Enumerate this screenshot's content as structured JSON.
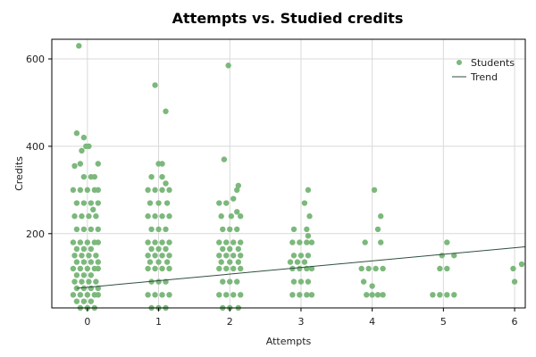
{
  "chart_data": {
    "type": "scatter",
    "title": "Attempts vs. Studied credits",
    "xlabel": "Attempts",
    "ylabel": "Credits",
    "xlim": [
      -0.5,
      6.15
    ],
    "ylim": [
      30,
      645
    ],
    "xticks": [
      0,
      1,
      2,
      3,
      4,
      5,
      6
    ],
    "yticks": [
      200,
      400,
      600
    ],
    "grid": true,
    "legend": "top-right",
    "colors": {
      "points": "#7cb87c",
      "trend": "#2e4f3e"
    },
    "series": [
      {
        "name": "Students",
        "kind": "scatter",
        "points": [
          [
            -0.12,
            630
          ],
          [
            -0.15,
            430
          ],
          [
            -0.05,
            420
          ],
          [
            -0.02,
            400
          ],
          [
            0.02,
            400
          ],
          [
            -0.08,
            390
          ],
          [
            -0.18,
            355
          ],
          [
            -0.1,
            360
          ],
          [
            0.15,
            360
          ],
          [
            -0.05,
            330
          ],
          [
            0.05,
            330
          ],
          [
            0.1,
            330
          ],
          [
            -0.2,
            300
          ],
          [
            -0.1,
            300
          ],
          [
            0.0,
            300
          ],
          [
            0.1,
            300
          ],
          [
            0.15,
            300
          ],
          [
            -0.15,
            270
          ],
          [
            -0.05,
            270
          ],
          [
            0.05,
            270
          ],
          [
            0.15,
            270
          ],
          [
            0.08,
            255
          ],
          [
            -0.18,
            240
          ],
          [
            -0.08,
            240
          ],
          [
            0.02,
            240
          ],
          [
            0.12,
            240
          ],
          [
            -0.15,
            210
          ],
          [
            -0.05,
            210
          ],
          [
            0.05,
            210
          ],
          [
            0.15,
            210
          ],
          [
            -0.2,
            180
          ],
          [
            -0.1,
            180
          ],
          [
            0.0,
            180
          ],
          [
            0.1,
            180
          ],
          [
            0.15,
            180
          ],
          [
            -0.15,
            165
          ],
          [
            -0.05,
            165
          ],
          [
            0.05,
            165
          ],
          [
            -0.18,
            150
          ],
          [
            -0.08,
            150
          ],
          [
            0.02,
            150
          ],
          [
            0.12,
            150
          ],
          [
            -0.15,
            135
          ],
          [
            -0.05,
            135
          ],
          [
            0.05,
            135
          ],
          [
            0.15,
            135
          ],
          [
            -0.2,
            120
          ],
          [
            -0.1,
            120
          ],
          [
            0.0,
            120
          ],
          [
            0.1,
            120
          ],
          [
            0.15,
            120
          ],
          [
            -0.15,
            105
          ],
          [
            -0.05,
            105
          ],
          [
            0.05,
            105
          ],
          [
            -0.18,
            90
          ],
          [
            -0.08,
            90
          ],
          [
            0.02,
            90
          ],
          [
            0.12,
            90
          ],
          [
            -0.15,
            75
          ],
          [
            -0.05,
            75
          ],
          [
            0.05,
            75
          ],
          [
            0.15,
            75
          ],
          [
            -0.2,
            60
          ],
          [
            -0.1,
            60
          ],
          [
            0.0,
            60
          ],
          [
            0.1,
            60
          ],
          [
            0.15,
            60
          ],
          [
            -0.15,
            45
          ],
          [
            -0.05,
            45
          ],
          [
            0.05,
            45
          ],
          [
            -0.1,
            30
          ],
          [
            0.0,
            30
          ],
          [
            0.1,
            30
          ],
          [
            0.95,
            540
          ],
          [
            1.1,
            480
          ],
          [
            1.0,
            360
          ],
          [
            1.05,
            360
          ],
          [
            0.9,
            330
          ],
          [
            1.05,
            330
          ],
          [
            1.1,
            315
          ],
          [
            0.85,
            300
          ],
          [
            0.95,
            300
          ],
          [
            1.05,
            300
          ],
          [
            1.15,
            300
          ],
          [
            0.88,
            270
          ],
          [
            1.0,
            270
          ],
          [
            1.12,
            270
          ],
          [
            0.85,
            240
          ],
          [
            0.95,
            240
          ],
          [
            1.05,
            240
          ],
          [
            1.15,
            240
          ],
          [
            0.9,
            210
          ],
          [
            1.0,
            210
          ],
          [
            1.1,
            210
          ],
          [
            0.85,
            180
          ],
          [
            0.95,
            180
          ],
          [
            1.05,
            180
          ],
          [
            1.15,
            180
          ],
          [
            0.9,
            165
          ],
          [
            1.0,
            165
          ],
          [
            1.1,
            165
          ],
          [
            0.85,
            150
          ],
          [
            0.95,
            150
          ],
          [
            1.05,
            150
          ],
          [
            1.15,
            150
          ],
          [
            0.88,
            135
          ],
          [
            1.0,
            135
          ],
          [
            1.12,
            135
          ],
          [
            0.85,
            120
          ],
          [
            0.95,
            120
          ],
          [
            1.05,
            120
          ],
          [
            1.15,
            120
          ],
          [
            0.9,
            90
          ],
          [
            1.0,
            90
          ],
          [
            1.1,
            90
          ],
          [
            0.85,
            60
          ],
          [
            0.95,
            60
          ],
          [
            1.05,
            60
          ],
          [
            1.15,
            60
          ],
          [
            0.9,
            30
          ],
          [
            1.0,
            30
          ],
          [
            1.1,
            30
          ],
          [
            1.98,
            585
          ],
          [
            1.92,
            370
          ],
          [
            2.12,
            310
          ],
          [
            2.1,
            300
          ],
          [
            2.05,
            280
          ],
          [
            1.85,
            270
          ],
          [
            1.95,
            270
          ],
          [
            2.1,
            250
          ],
          [
            1.88,
            240
          ],
          [
            2.02,
            240
          ],
          [
            2.15,
            240
          ],
          [
            1.9,
            210
          ],
          [
            2.0,
            210
          ],
          [
            2.1,
            210
          ],
          [
            1.85,
            180
          ],
          [
            1.95,
            180
          ],
          [
            2.05,
            180
          ],
          [
            2.15,
            180
          ],
          [
            1.9,
            165
          ],
          [
            2.0,
            165
          ],
          [
            2.12,
            165
          ],
          [
            1.85,
            150
          ],
          [
            1.95,
            150
          ],
          [
            2.05,
            150
          ],
          [
            2.15,
            150
          ],
          [
            1.88,
            135
          ],
          [
            2.0,
            135
          ],
          [
            2.12,
            135
          ],
          [
            1.85,
            120
          ],
          [
            1.95,
            120
          ],
          [
            2.05,
            120
          ],
          [
            2.15,
            120
          ],
          [
            1.9,
            90
          ],
          [
            2.0,
            90
          ],
          [
            2.1,
            90
          ],
          [
            1.85,
            60
          ],
          [
            1.95,
            60
          ],
          [
            2.05,
            60
          ],
          [
            2.15,
            60
          ],
          [
            1.9,
            30
          ],
          [
            2.0,
            30
          ],
          [
            2.12,
            30
          ],
          [
            3.1,
            300
          ],
          [
            3.05,
            270
          ],
          [
            3.12,
            240
          ],
          [
            2.9,
            210
          ],
          [
            3.08,
            210
          ],
          [
            2.88,
            180
          ],
          [
            2.98,
            180
          ],
          [
            3.08,
            180
          ],
          [
            3.15,
            180
          ],
          [
            3.1,
            195
          ],
          [
            2.9,
            150
          ],
          [
            3.0,
            150
          ],
          [
            3.1,
            150
          ],
          [
            2.85,
            135
          ],
          [
            2.95,
            135
          ],
          [
            3.05,
            135
          ],
          [
            3.15,
            120
          ],
          [
            2.88,
            120
          ],
          [
            2.98,
            120
          ],
          [
            3.08,
            120
          ],
          [
            2.9,
            90
          ],
          [
            3.0,
            90
          ],
          [
            3.1,
            90
          ],
          [
            2.88,
            60
          ],
          [
            2.98,
            60
          ],
          [
            3.08,
            60
          ],
          [
            3.15,
            60
          ],
          [
            4.03,
            300
          ],
          [
            4.12,
            240
          ],
          [
            4.08,
            210
          ],
          [
            3.9,
            180
          ],
          [
            4.12,
            180
          ],
          [
            3.85,
            120
          ],
          [
            3.95,
            120
          ],
          [
            4.05,
            120
          ],
          [
            4.15,
            120
          ],
          [
            3.88,
            90
          ],
          [
            4.0,
            80
          ],
          [
            3.92,
            60
          ],
          [
            4.0,
            60
          ],
          [
            4.08,
            60
          ],
          [
            4.15,
            60
          ],
          [
            5.05,
            180
          ],
          [
            4.98,
            150
          ],
          [
            5.15,
            150
          ],
          [
            4.95,
            120
          ],
          [
            5.05,
            120
          ],
          [
            4.85,
            60
          ],
          [
            4.95,
            60
          ],
          [
            5.05,
            60
          ],
          [
            5.15,
            60
          ],
          [
            6.1,
            130
          ],
          [
            5.98,
            120
          ],
          [
            6.0,
            90
          ]
        ]
      },
      {
        "name": "Trend",
        "kind": "line",
        "points": [
          [
            -0.15,
            75
          ],
          [
            6.15,
            170
          ]
        ]
      }
    ]
  }
}
